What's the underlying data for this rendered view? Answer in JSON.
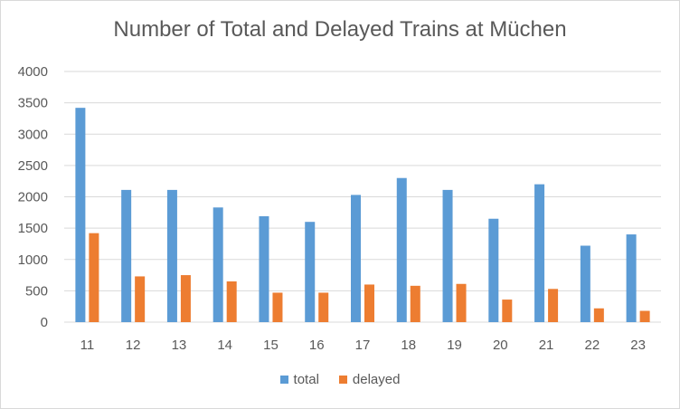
{
  "chart_data": {
    "type": "bar",
    "title": "Number of Total and Delayed Trains at Müchen",
    "xlabel": "",
    "ylabel": "",
    "ylim": [
      0,
      4000
    ],
    "yticks": [
      0,
      500,
      1000,
      1500,
      2000,
      2500,
      3000,
      3500,
      4000
    ],
    "categories": [
      "11",
      "12",
      "13",
      "14",
      "15",
      "16",
      "17",
      "18",
      "19",
      "20",
      "21",
      "22",
      "23"
    ],
    "series": [
      {
        "name": "total",
        "color": "#5b9bd5",
        "values": [
          3420,
          2110,
          2110,
          1830,
          1690,
          1600,
          2030,
          2300,
          2110,
          1650,
          2200,
          1220,
          1400
        ]
      },
      {
        "name": "delayed",
        "color": "#ed7d31",
        "values": [
          1420,
          730,
          750,
          650,
          470,
          470,
          600,
          580,
          610,
          360,
          530,
          220,
          180
        ]
      }
    ],
    "grid": true,
    "legend_position": "bottom"
  }
}
